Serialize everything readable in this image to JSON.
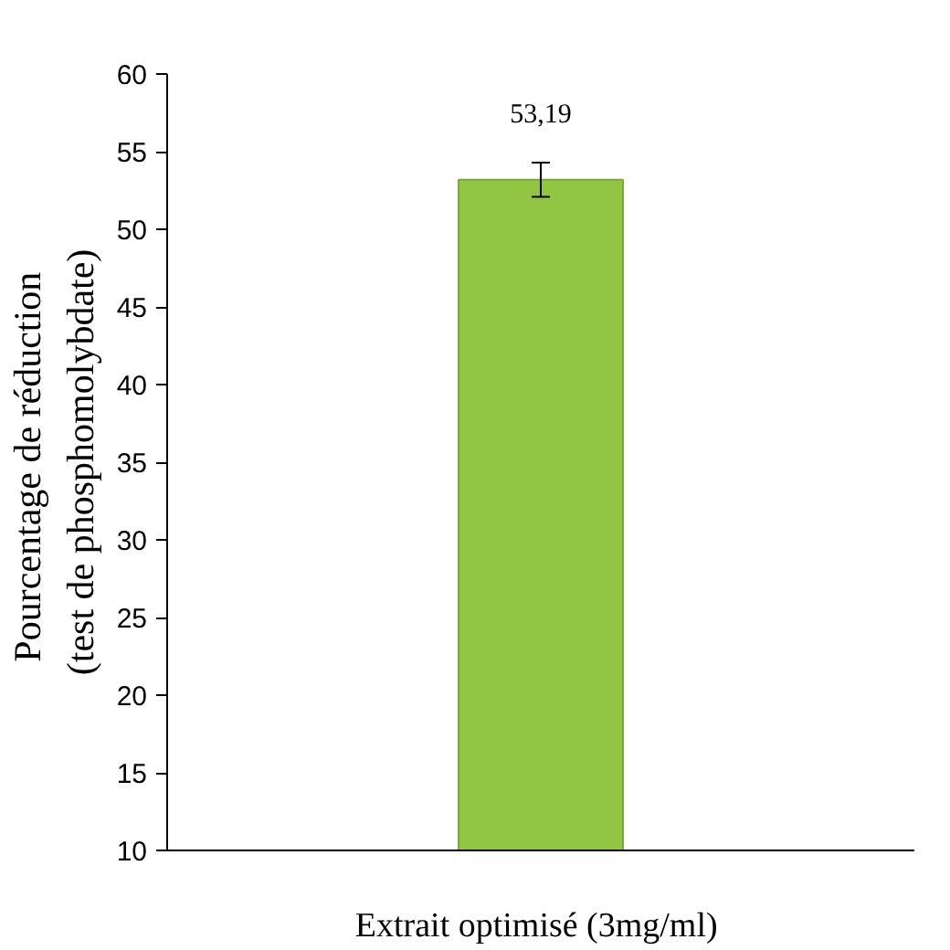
{
  "chart_data": {
    "type": "bar",
    "ylabel": "Pourcentage  de réduction\n(test de phosphomolybdate)",
    "categories": [
      "Extrait optimisé  (3mg/ml)"
    ],
    "values": [
      53.19
    ],
    "errors": [
      1.1
    ],
    "value_labels": [
      "53,19"
    ],
    "color": "#92c544",
    "ylim": [
      10,
      60
    ],
    "yticks": [
      10,
      15,
      20,
      25,
      30,
      35,
      40,
      45,
      50,
      55,
      60
    ]
  }
}
